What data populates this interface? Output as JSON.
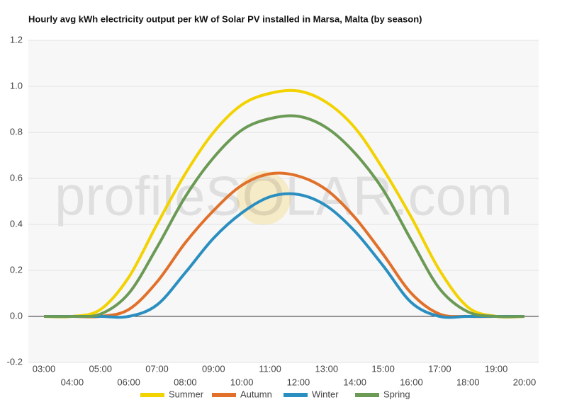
{
  "chart_data": {
    "type": "line",
    "title": "Hourly avg kWh electricity output per kW of Solar PV installed in Marsa, Malta (by season)",
    "watermark": "profileSOLAR.com",
    "categories": [
      "03:00",
      "04:00",
      "05:00",
      "06:00",
      "07:00",
      "08:00",
      "09:00",
      "10:00",
      "11:00",
      "12:00",
      "13:00",
      "14:00",
      "15:00",
      "16:00",
      "17:00",
      "18:00",
      "19:00",
      "20:00"
    ],
    "series": [
      {
        "name": "Summer",
        "color": "#f2d200",
        "values": [
          0,
          0,
          0.03,
          0.17,
          0.4,
          0.62,
          0.8,
          0.92,
          0.97,
          0.98,
          0.93,
          0.82,
          0.64,
          0.43,
          0.2,
          0.04,
          0,
          0
        ]
      },
      {
        "name": "Autumn",
        "color": "#e0702a",
        "values": [
          0,
          0,
          0,
          0.03,
          0.15,
          0.32,
          0.46,
          0.57,
          0.62,
          0.61,
          0.55,
          0.43,
          0.27,
          0.1,
          0.01,
          0,
          0,
          0
        ]
      },
      {
        "name": "Winter",
        "color": "#2a8fc0",
        "values": [
          0,
          0,
          0,
          0,
          0.05,
          0.19,
          0.34,
          0.45,
          0.52,
          0.53,
          0.48,
          0.37,
          0.22,
          0.06,
          0,
          0,
          0,
          0
        ]
      },
      {
        "name": "Spring",
        "color": "#6b9a55",
        "values": [
          0,
          0,
          0.01,
          0.1,
          0.3,
          0.52,
          0.69,
          0.81,
          0.86,
          0.87,
          0.82,
          0.71,
          0.55,
          0.33,
          0.12,
          0.02,
          0,
          0
        ]
      }
    ],
    "ylim": [
      -0.2,
      1.2
    ],
    "yticks": [
      {
        "value": -0.2,
        "label": "-0.2"
      },
      {
        "value": 0,
        "label": "0.0"
      },
      {
        "value": 0.2,
        "label": "0.2"
      },
      {
        "value": 0.4,
        "label": "0.4"
      },
      {
        "value": 0.6,
        "label": "0.6"
      },
      {
        "value": 0.8,
        "label": "0.8"
      },
      {
        "value": 1,
        "label": "1.0"
      },
      {
        "value": 1.2,
        "label": "1.2"
      }
    ],
    "grid": true,
    "legend": "bottom"
  }
}
